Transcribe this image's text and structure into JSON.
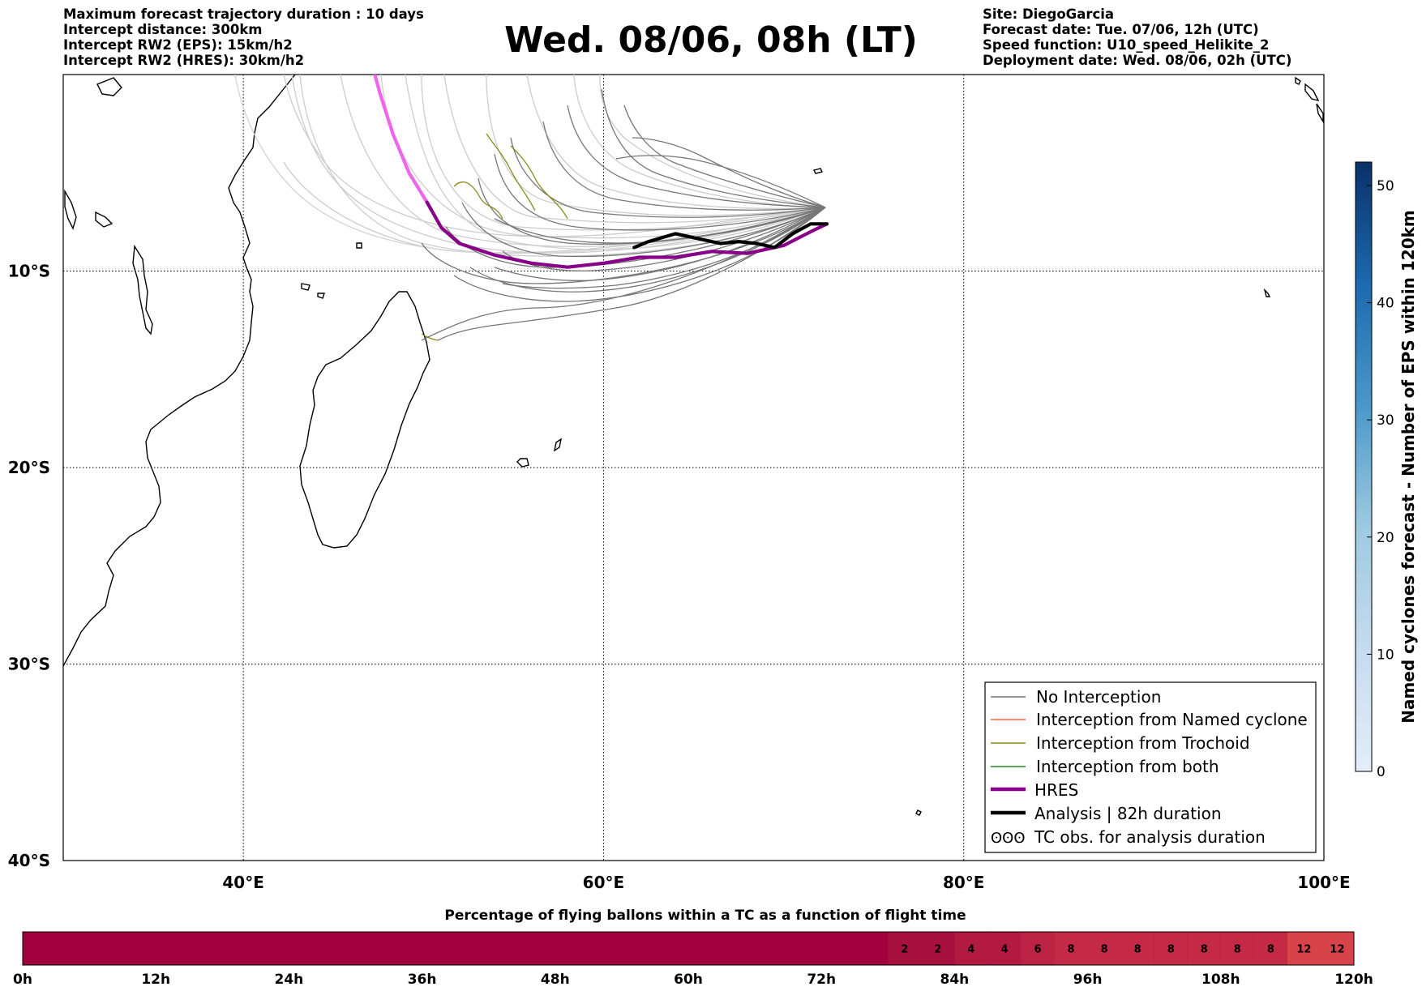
{
  "header": {
    "left_lines": [
      "Maximum forecast trajectory duration : 10 days",
      "Intercept distance: 300km",
      "Intercept RW2 (EPS):  15km/h2",
      "Intercept RW2 (HRES): 30km/h2"
    ],
    "title": "Wed. 08/06, 08h (LT)",
    "right_lines": [
      "Site: DiegoGarcia",
      "Forecast date: Tue. 07/06, 12h (UTC)",
      "Speed function: U10_speed_Helikite_2",
      "Deployment date: Wed. 08/06, 02h (UTC)"
    ]
  },
  "chart_data": {
    "type": "line",
    "map": {
      "lon_range": [
        30,
        100
      ],
      "lat_range": [
        -40,
        0
      ],
      "x_ticks": [
        40,
        60,
        80,
        100
      ],
      "x_tick_labels": [
        "40°E",
        "60°E",
        "80°E",
        "100°E"
      ],
      "y_ticks": [
        -10,
        -20,
        -30,
        -40
      ],
      "y_tick_labels": [
        "10°S",
        "20°S",
        "30°S",
        "40°S"
      ],
      "grid": true,
      "grid_style": "dotted"
    },
    "legend": {
      "placement": "lower-right",
      "entries": [
        {
          "label": "No Interception",
          "color": "#777777",
          "style": "thin-line"
        },
        {
          "label": "Interception from Named cyclone",
          "color": "#ff6633",
          "style": "thin-line"
        },
        {
          "label": "Interception from Trochoid",
          "color": "#8b8b1a",
          "style": "thin-line"
        },
        {
          "label": "Interception from both",
          "color": "#228b22",
          "style": "thin-line"
        },
        {
          "label": "HRES",
          "color": "#880088",
          "style": "thick-line"
        },
        {
          "label": "Analysis | 82h duration",
          "color": "#000000",
          "style": "thick-line"
        },
        {
          "label": "TC obs. for analysis duration",
          "color": "#000000",
          "style": "cyclone-symbols",
          "symbol_text": "ʘʘʘ"
        }
      ]
    },
    "series": [
      {
        "name": "Analysis | 82h duration",
        "color": "#000000",
        "points": [
          [
            72.4,
            -7.6
          ],
          [
            71.5,
            -7.6
          ],
          [
            70.5,
            -8.1
          ],
          [
            69.5,
            -8.8
          ],
          [
            68.5,
            -8.6
          ],
          [
            67.5,
            -8.5
          ],
          [
            66.5,
            -8.6
          ],
          [
            65.5,
            -8.4
          ],
          [
            64,
            -8.1
          ],
          [
            62.5,
            -8.5
          ],
          [
            61.7,
            -8.8
          ]
        ]
      },
      {
        "name": "HRES",
        "color": "#880088",
        "points": [
          [
            72.4,
            -7.6
          ],
          [
            71.5,
            -8
          ],
          [
            70,
            -8.7
          ],
          [
            68,
            -9.1
          ],
          [
            66,
            -9
          ],
          [
            64,
            -9.3
          ],
          [
            62,
            -9.3
          ],
          [
            60,
            -9.6
          ],
          [
            58,
            -9.8
          ],
          [
            56,
            -9.6
          ],
          [
            54,
            -9.2
          ],
          [
            52,
            -8.6
          ],
          [
            51,
            -7.8
          ],
          [
            50.2,
            -6.5
          ]
        ]
      },
      {
        "name": "HRES (extended)",
        "color": "#ee66ee",
        "points": [
          [
            50.2,
            -6.5
          ],
          [
            49.2,
            -5
          ],
          [
            48.3,
            -3
          ],
          [
            47.6,
            -1
          ],
          [
            47.3,
            0
          ]
        ]
      }
    ],
    "colorbar": {
      "label": "Named cyclones forecast - Number of EPS within 120km",
      "min": 0,
      "max": 52,
      "ticks": [
        0,
        10,
        20,
        30,
        40,
        50
      ],
      "tick_labels": [
        "0",
        "10",
        "20",
        "30",
        "40",
        "50"
      ],
      "color_low": "#e3eef9",
      "color_high": "#0a3069"
    },
    "flight_time_bar": {
      "title": "Percentage of flying ballons within a TC as a function of flight time",
      "hour_ticks": [
        0,
        12,
        24,
        36,
        48,
        60,
        72,
        84,
        96,
        108,
        120
      ],
      "tick_labels": [
        "0h",
        "12h",
        "24h",
        "36h",
        "48h",
        "60h",
        "72h",
        "84h",
        "96h",
        "108h",
        "120h"
      ],
      "base_color": "#a0003c",
      "values": [
        {
          "start_h": 78,
          "end_h": 81,
          "value": "2",
          "color": "#a8103f"
        },
        {
          "start_h": 81,
          "end_h": 84,
          "value": "2",
          "color": "#a8103f"
        },
        {
          "start_h": 84,
          "end_h": 87,
          "value": "4",
          "color": "#b21a42"
        },
        {
          "start_h": 87,
          "end_h": 90,
          "value": "4",
          "color": "#b21a42"
        },
        {
          "start_h": 90,
          "end_h": 93,
          "value": "6",
          "color": "#bb2244"
        },
        {
          "start_h": 93,
          "end_h": 96,
          "value": "8",
          "color": "#c42a46"
        },
        {
          "start_h": 96,
          "end_h": 99,
          "value": "8",
          "color": "#c42a46"
        },
        {
          "start_h": 99,
          "end_h": 102,
          "value": "8",
          "color": "#c42a46"
        },
        {
          "start_h": 102,
          "end_h": 105,
          "value": "8",
          "color": "#c42a46"
        },
        {
          "start_h": 105,
          "end_h": 108,
          "value": "8",
          "color": "#c42a46"
        },
        {
          "start_h": 108,
          "end_h": 111,
          "value": "8",
          "color": "#c42a46"
        },
        {
          "start_h": 111,
          "end_h": 114,
          "value": "8",
          "color": "#c42a46"
        },
        {
          "start_h": 114,
          "end_h": 117,
          "value": "12",
          "color": "#d8434a"
        },
        {
          "start_h": 117,
          "end_h": 120,
          "value": "12",
          "color": "#d8434a"
        }
      ]
    }
  }
}
